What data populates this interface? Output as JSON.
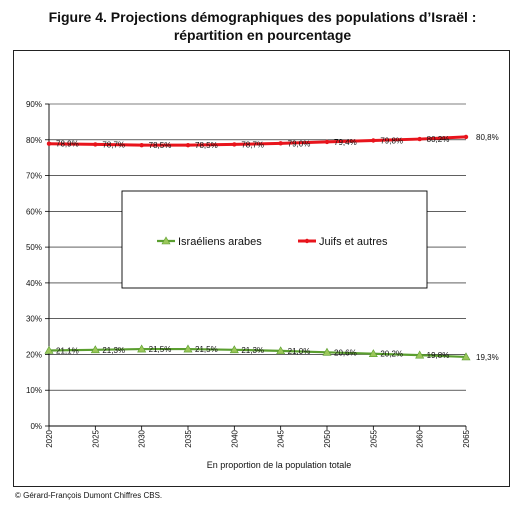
{
  "title_line1": "Figure 4. Projections démographiques des populations d’Israël :",
  "title_line2": "répartition en pourcentage",
  "footer": "© Gérard-François Dumont Chiffres  CBS.",
  "chart_data": {
    "type": "line",
    "xlabel": "En proportion de la population totale",
    "ylabel": "",
    "x": [
      "2020",
      "2025",
      "2030",
      "2035",
      "2040",
      "2045",
      "2050",
      "2055",
      "2060",
      "2065"
    ],
    "yticks": [
      "0%",
      "10%",
      "20%",
      "30%",
      "40%",
      "50%",
      "60%",
      "70%",
      "80%",
      "90%"
    ],
    "ylim": [
      0,
      90
    ],
    "grid": "horizontal",
    "legend_position": "center",
    "series": [
      {
        "name": "Israéliens arabes",
        "color": "#5a9e2f",
        "marker_color": "#9bc75a",
        "marker": "triangle",
        "values": [
          21.1,
          21.3,
          21.5,
          21.5,
          21.3,
          21.0,
          20.6,
          20.2,
          19.8,
          19.3
        ],
        "labels": [
          "21,1%",
          "21,3%",
          "21,5%",
          "21,5%",
          "21,3%",
          "21,0%",
          "20,6%",
          "20,2%",
          "19,8%",
          "19,3%"
        ]
      },
      {
        "name": "Juifs et autres",
        "color": "#e8141c",
        "marker_color": "#e8141c",
        "marker": "dot",
        "values": [
          78.9,
          78.7,
          78.5,
          78.5,
          78.7,
          79.0,
          79.4,
          79.8,
          80.2,
          80.8
        ],
        "labels": [
          "78,9%",
          "78,7%",
          "78,5%",
          "78,5%",
          "78,7%",
          "79,0%",
          "79,4%",
          "79,8%",
          "80,2%",
          "80,8%"
        ]
      }
    ]
  }
}
